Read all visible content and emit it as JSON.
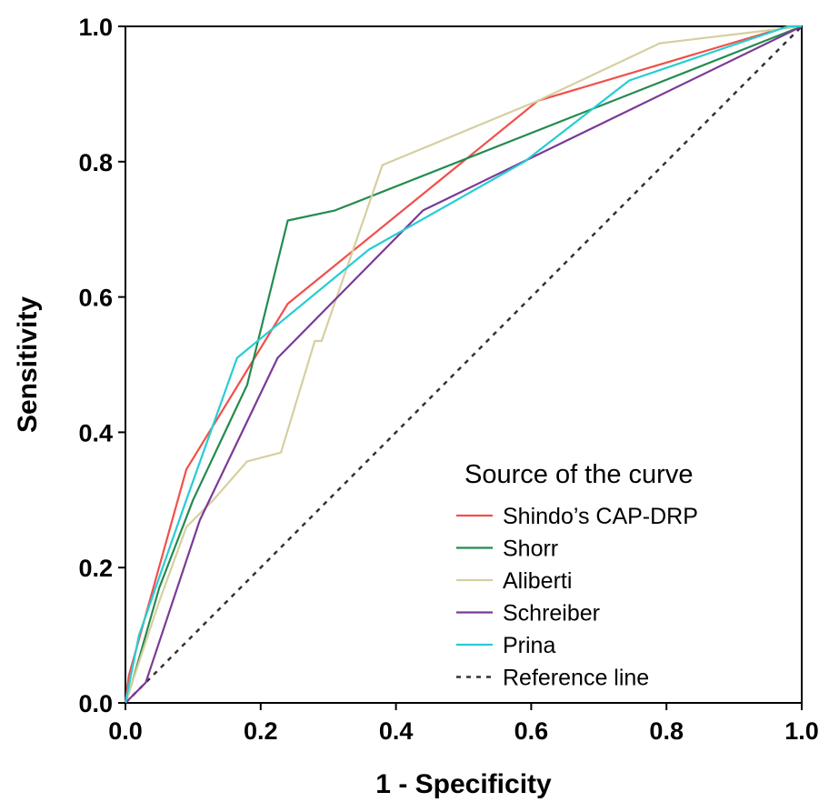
{
  "chart_data": {
    "type": "line",
    "title": "",
    "xlabel": "1 - Specificity",
    "ylabel": "Sensitivity",
    "xlim": [
      0,
      1
    ],
    "ylim": [
      0,
      1
    ],
    "x_ticks": [
      "0.0",
      "0.2",
      "0.4",
      "0.6",
      "0.8",
      "1.0"
    ],
    "y_ticks": [
      "0.0",
      "0.2",
      "0.4",
      "0.6",
      "0.8",
      "1.0"
    ],
    "grid": false,
    "legend": {
      "title": "Source of the curve",
      "position": "bottom-right"
    },
    "series": [
      {
        "name": "Shindo’s CAP-DRP",
        "color": "#f0504a",
        "dash": "solid",
        "points": [
          [
            0,
            0
          ],
          [
            0.005,
            0.04
          ],
          [
            0.09,
            0.345
          ],
          [
            0.24,
            0.59
          ],
          [
            0.61,
            0.89
          ],
          [
            0.98,
            1.0
          ],
          [
            1,
            1
          ]
        ]
      },
      {
        "name": "Shorr",
        "color": "#238b4f",
        "dash": "solid",
        "points": [
          [
            0,
            0
          ],
          [
            0.01,
            0.03
          ],
          [
            0.05,
            0.17
          ],
          [
            0.1,
            0.3
          ],
          [
            0.18,
            0.47
          ],
          [
            0.24,
            0.713
          ],
          [
            0.31,
            0.728
          ],
          [
            1,
            1
          ]
        ]
      },
      {
        "name": "Aliberti",
        "color": "#d6cfa0",
        "dash": "solid",
        "points": [
          [
            0,
            0
          ],
          [
            0.05,
            0.15
          ],
          [
            0.09,
            0.26
          ],
          [
            0.13,
            0.3
          ],
          [
            0.18,
            0.357
          ],
          [
            0.23,
            0.37
          ],
          [
            0.28,
            0.535
          ],
          [
            0.29,
            0.535
          ],
          [
            0.38,
            0.795
          ],
          [
            0.61,
            0.89
          ],
          [
            0.79,
            0.975
          ],
          [
            1,
            1
          ]
        ]
      },
      {
        "name": "Schreiber",
        "color": "#7b3a96",
        "dash": "solid",
        "points": [
          [
            0,
            0
          ],
          [
            0.02,
            0.02
          ],
          [
            0.03,
            0.03
          ],
          [
            0.11,
            0.27
          ],
          [
            0.225,
            0.51
          ],
          [
            0.44,
            0.728
          ],
          [
            1,
            1
          ]
        ]
      },
      {
        "name": "Prina",
        "color": "#26cdd4",
        "dash": "solid",
        "points": [
          [
            0,
            0
          ],
          [
            0.02,
            0.1
          ],
          [
            0.09,
            0.3
          ],
          [
            0.165,
            0.51
          ],
          [
            0.36,
            0.67
          ],
          [
            0.59,
            0.8
          ],
          [
            0.745,
            0.92
          ],
          [
            0.98,
            1.0
          ],
          [
            1,
            1
          ]
        ]
      },
      {
        "name": "Reference line",
        "color": "#333333",
        "dash": "dotted",
        "points": [
          [
            0,
            0
          ],
          [
            1,
            1
          ]
        ]
      }
    ]
  }
}
